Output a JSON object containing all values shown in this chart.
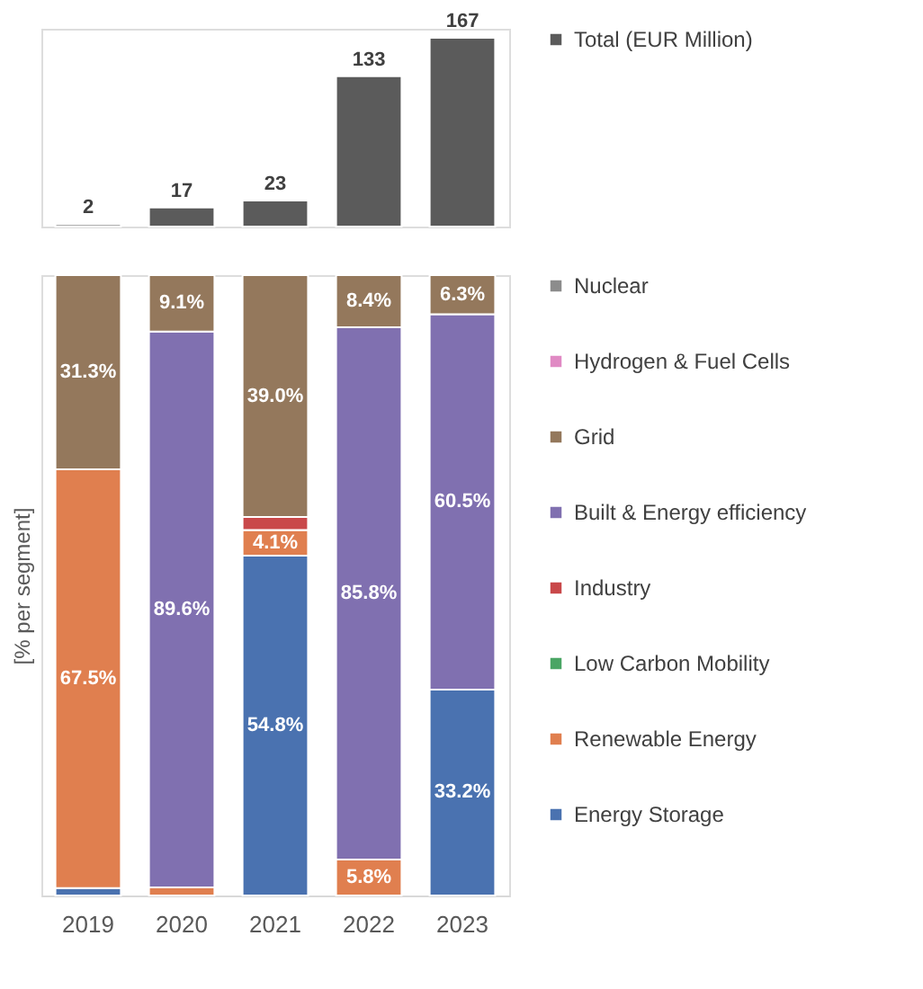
{
  "chart_data": [
    {
      "type": "bar",
      "categories": [
        "2019",
        "2020",
        "2021",
        "2022",
        "2023"
      ],
      "ylim": [
        0,
        175
      ],
      "tick_labels": false,
      "data_labels": true,
      "legend": "right",
      "series": [
        {
          "name": "Total (EUR Million)",
          "color": "#5b5b5b",
          "values": [
            2,
            17,
            23,
            133,
            167
          ]
        }
      ]
    },
    {
      "type": "bar",
      "stacked": true,
      "categories": [
        "2019",
        "2020",
        "2021",
        "2022",
        "2023"
      ],
      "ylabel": "[% per segment]",
      "ylim": [
        0,
        100
      ],
      "tick_labels": "x",
      "legend": "right",
      "series": [
        {
          "name": "Energy Storage",
          "color": "#4a72b0",
          "values": [
            1.2,
            null,
            54.8,
            null,
            33.2
          ],
          "value_labels": [
            null,
            null,
            "54.8%",
            null,
            "33.2%"
          ]
        },
        {
          "name": "Renewable Energy",
          "color": "#e07f4f",
          "values": [
            67.5,
            1.3,
            4.1,
            5.8,
            null
          ],
          "value_labels": [
            "67.5%",
            null,
            "4.1%",
            "5.8%",
            null
          ]
        },
        {
          "name": "Low Carbon Mobility",
          "color": "#4aa564",
          "values": [
            null,
            null,
            null,
            null,
            null
          ],
          "value_labels": [
            null,
            null,
            null,
            null,
            null
          ]
        },
        {
          "name": "Industry",
          "color": "#c9484a",
          "values": [
            null,
            null,
            2.1,
            null,
            null
          ],
          "value_labels": [
            null,
            null,
            null,
            null,
            null
          ]
        },
        {
          "name": "Built & Energy efficiency",
          "color": "#8070b0",
          "values": [
            null,
            89.6,
            null,
            85.8,
            60.5
          ],
          "value_labels": [
            null,
            "89.6%",
            null,
            "85.8%",
            "60.5%"
          ]
        },
        {
          "name": "Grid",
          "color": "#94785c",
          "values": [
            31.3,
            9.1,
            39.0,
            8.4,
            6.3
          ],
          "value_labels": [
            "31.3%",
            "9.1%",
            "39.0%",
            "8.4%",
            "6.3%"
          ]
        },
        {
          "name": "Hydrogen & Fuel Cells",
          "color": "#e08ac4",
          "values": [
            null,
            null,
            null,
            null,
            null
          ],
          "value_labels": [
            null,
            null,
            null,
            null,
            null
          ]
        },
        {
          "name": "Nuclear",
          "color": "#8c8c8c",
          "values": [
            null,
            null,
            null,
            null,
            null
          ],
          "value_labels": [
            null,
            null,
            null,
            null,
            null
          ]
        }
      ]
    }
  ]
}
